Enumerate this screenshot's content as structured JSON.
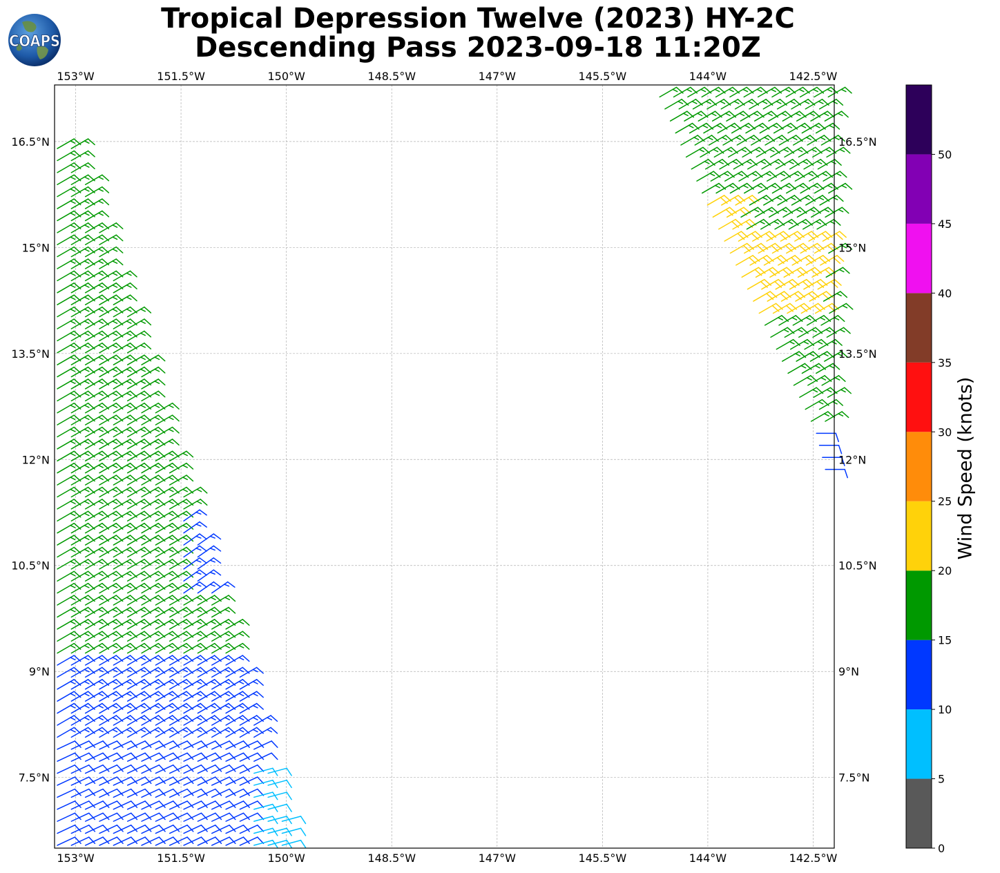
{
  "title": {
    "line1": "Tropical Depression Twelve (2023) HY-2C",
    "line2": "Descending Pass 2023-09-18 11:20Z"
  },
  "logo": {
    "text": "COAPS",
    "icon": "globe-icon"
  },
  "map": {
    "lon_range": [
      -153.3,
      -142.2
    ],
    "lat_range": [
      6.5,
      17.3
    ],
    "lon_ticks": [
      {
        "value": -153.0,
        "label": "153°W"
      },
      {
        "value": -151.5,
        "label": "151.5°W"
      },
      {
        "value": -150.0,
        "label": "150°W"
      },
      {
        "value": -148.5,
        "label": "148.5°W"
      },
      {
        "value": -147.0,
        "label": "147°W"
      },
      {
        "value": -145.5,
        "label": "145.5°W"
      },
      {
        "value": -144.0,
        "label": "144°W"
      },
      {
        "value": -142.5,
        "label": "142.5°W"
      }
    ],
    "lat_ticks": [
      {
        "value": 16.5,
        "label": "16.5°N"
      },
      {
        "value": 15.0,
        "label": "15°N"
      },
      {
        "value": 13.5,
        "label": "13.5°N"
      },
      {
        "value": 12.0,
        "label": "12°N"
      },
      {
        "value": 10.5,
        "label": "10.5°N"
      },
      {
        "value": 9.0,
        "label": "9°N"
      },
      {
        "value": 7.5,
        "label": "7.5°N"
      }
    ],
    "gridlines": true,
    "swaths": [
      {
        "name": "west",
        "edges": [
          {
            "lat": 16.4,
            "lon_west": -153.3,
            "lon_east": -152.95
          },
          {
            "lat": 11.5,
            "lon_west": -153.3,
            "lon_east": -151.4
          },
          {
            "lat": 9.0,
            "lon_west": -153.3,
            "lon_east": -150.6
          },
          {
            "lat": 6.5,
            "lon_west": -153.3,
            "lon_east": -149.85
          }
        ],
        "segments": [
          {
            "lat_min": 9.1,
            "lat_max": 16.4,
            "speed_kt": 17,
            "dir_deg": 60
          },
          {
            "lat_min": 7.9,
            "lat_max": 9.1,
            "speed_kt": 13,
            "dir_deg": 60
          },
          {
            "lat_min": 10.0,
            "lat_max": 11.2,
            "speed_kt": 13,
            "dir_deg": 55,
            "lon_min": -151.7
          },
          {
            "lat_min": 6.5,
            "lat_max": 7.9,
            "speed_kt": 12,
            "dir_deg": 65
          },
          {
            "lat_min": 6.5,
            "lat_max": 7.6,
            "speed_kt": 8,
            "dir_deg": 75,
            "lon_min": -150.7
          }
        ]
      },
      {
        "name": "east",
        "edges": [
          {
            "lat": 17.3,
            "lon_west": -144.8,
            "lon_east": -142.2
          },
          {
            "lat": 15.5,
            "lon_west": -144.0,
            "lon_east": -142.2
          },
          {
            "lat": 12.4,
            "lon_west": -142.5,
            "lon_east": -142.2
          },
          {
            "lat": 11.8,
            "lon_west": -142.35,
            "lon_east": -142.2
          }
        ],
        "segments": [
          {
            "lat_min": 12.5,
            "lat_max": 17.3,
            "speed_kt": 17,
            "dir_deg": 60
          },
          {
            "lat_min": 13.9,
            "lat_max": 15.1,
            "speed_kt": 22,
            "dir_deg": 60,
            "lon_max": -142.4
          },
          {
            "lat_min": 15.2,
            "lat_max": 15.6,
            "speed_kt": 22,
            "dir_deg": 60,
            "lon_max": -143.6
          },
          {
            "lat_min": 11.8,
            "lat_max": 12.5,
            "speed_kt": 12,
            "dir_deg": 90
          }
        ]
      }
    ]
  },
  "colorbar": {
    "label": "Wind Speed (knots)",
    "ticks": [
      "0",
      "5",
      "10",
      "15",
      "20",
      "25",
      "30",
      "35",
      "40",
      "45",
      "50"
    ],
    "bins": [
      {
        "from": 0,
        "to": 5,
        "color": "#595959"
      },
      {
        "from": 5,
        "to": 10,
        "color": "#00bfff"
      },
      {
        "from": 10,
        "to": 15,
        "color": "#0038ff"
      },
      {
        "from": 15,
        "to": 20,
        "color": "#009900"
      },
      {
        "from": 20,
        "to": 25,
        "color": "#ffd20a"
      },
      {
        "from": 25,
        "to": 30,
        "color": "#ff8c0a"
      },
      {
        "from": 30,
        "to": 35,
        "color": "#ff1010"
      },
      {
        "from": 35,
        "to": 40,
        "color": "#823c28"
      },
      {
        "from": 40,
        "to": 45,
        "color": "#f010f0"
      },
      {
        "from": 45,
        "to": 50,
        "color": "#8200b4"
      },
      {
        "from": 50,
        "to": 55,
        "color": "#2d005a"
      }
    ]
  }
}
